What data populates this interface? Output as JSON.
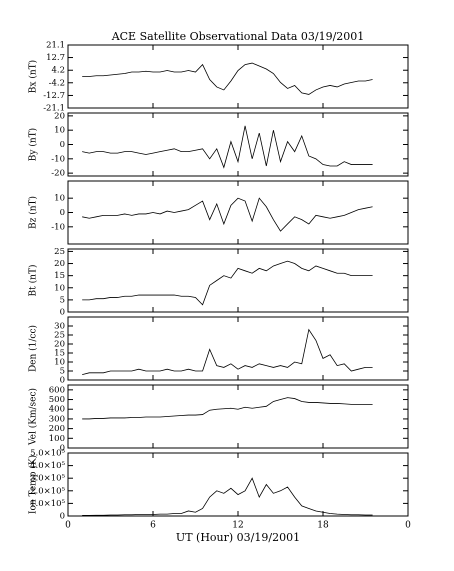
{
  "chart_data": [
    {
      "type": "line",
      "title": "ACE Satellite Observational Data   03/19/2001",
      "ylabel": "Bx (nT)",
      "color": "#000000",
      "x": [
        1,
        1.5,
        2,
        2.5,
        3,
        3.5,
        4,
        4.5,
        5,
        5.5,
        6,
        6.5,
        7,
        7.5,
        8,
        8.5,
        9,
        9.5,
        10,
        10.5,
        11,
        11.5,
        12,
        12.5,
        13,
        13.5,
        14,
        14.5,
        15,
        15.5,
        16,
        16.5,
        17,
        17.5,
        18,
        18.5,
        19,
        19.5,
        20,
        20.5,
        21,
        21.5
      ],
      "values": [
        0,
        0,
        0.5,
        0.5,
        1,
        1.5,
        2,
        3,
        3,
        3.5,
        3,
        3,
        4,
        3,
        3,
        4,
        3,
        8,
        -2,
        -7,
        -9,
        -3,
        4,
        8,
        9,
        7,
        5,
        2,
        -4,
        -8,
        -6,
        -11,
        -12,
        -9,
        -7,
        -6,
        -7,
        -5,
        -4,
        -3,
        -3,
        -2
      ],
      "xlim": [
        0,
        24
      ],
      "ylim": [
        -21.1,
        21.1
      ],
      "yticks": [
        21.1,
        12.7,
        4.2,
        -4.2,
        -12.7,
        -21.1
      ]
    },
    {
      "type": "line",
      "ylabel": "By (nT)",
      "color": "#000000",
      "x": [
        1,
        1.5,
        2,
        2.5,
        3,
        3.5,
        4,
        4.5,
        5,
        5.5,
        6,
        6.5,
        7,
        7.5,
        8,
        8.5,
        9,
        9.5,
        10,
        10.5,
        11,
        11.5,
        12,
        12.5,
        13,
        13.5,
        14,
        14.5,
        15,
        15.5,
        16,
        16.5,
        17,
        17.5,
        18,
        18.5,
        19,
        19.5,
        20,
        20.5,
        21,
        21.5
      ],
      "values": [
        -5,
        -6,
        -5,
        -5,
        -6,
        -6,
        -5,
        -5,
        -6,
        -7,
        -6,
        -5,
        -4,
        -3,
        -5,
        -5,
        -4,
        -3,
        -10,
        -3,
        -16,
        2,
        -12,
        13,
        -10,
        8,
        -15,
        10,
        -12,
        2,
        -5,
        6,
        -8,
        -10,
        -14,
        -15,
        -15,
        -12,
        -14,
        -14,
        -14,
        -14
      ],
      "xlim": [
        0,
        24
      ],
      "ylim": [
        -22,
        22
      ],
      "yticks": [
        20,
        10,
        0,
        -10,
        -20
      ]
    },
    {
      "type": "line",
      "ylabel": "Bz (nT)",
      "color": "#000000",
      "x": [
        1,
        1.5,
        2,
        2.5,
        3,
        3.5,
        4,
        4.5,
        5,
        5.5,
        6,
        6.5,
        7,
        7.5,
        8,
        8.5,
        9,
        9.5,
        10,
        10.5,
        11,
        11.5,
        12,
        12.5,
        13,
        13.5,
        14,
        14.5,
        15,
        15.5,
        16,
        16.5,
        17,
        17.5,
        18,
        18.5,
        19,
        19.5,
        20,
        20.5,
        21,
        21.5
      ],
      "values": [
        -3,
        -4,
        -3,
        -2,
        -2,
        -2,
        -1,
        -2,
        -1,
        -1,
        0,
        -1,
        1,
        0,
        1,
        2,
        5,
        8,
        -5,
        6,
        -8,
        5,
        10,
        8,
        -6,
        10,
        4,
        -5,
        -13,
        -8,
        -3,
        -5,
        -8,
        -2,
        -3,
        -4,
        -3,
        -2,
        0,
        2,
        3,
        4
      ],
      "xlim": [
        0,
        24
      ],
      "ylim": [
        -22,
        22
      ],
      "yticks": [
        10,
        0,
        -10
      ]
    },
    {
      "type": "line",
      "ylabel": "Bt (nT)",
      "color": "#000000",
      "x": [
        1,
        1.5,
        2,
        2.5,
        3,
        3.5,
        4,
        4.5,
        5,
        5.5,
        6,
        6.5,
        7,
        7.5,
        8,
        8.5,
        9,
        9.5,
        10,
        10.5,
        11,
        11.5,
        12,
        12.5,
        13,
        13.5,
        14,
        14.5,
        15,
        15.5,
        16,
        16.5,
        17,
        17.5,
        18,
        18.5,
        19,
        19.5,
        20,
        20.5,
        21,
        21.5
      ],
      "values": [
        5,
        5,
        5.5,
        5.5,
        6,
        6,
        6.5,
        6.5,
        7,
        7,
        7,
        7,
        7,
        7,
        6.5,
        6.5,
        6,
        3,
        11,
        13,
        15,
        14,
        18,
        17,
        16,
        18,
        17,
        19,
        20,
        21,
        20,
        18,
        17,
        19,
        18,
        17,
        16,
        16,
        15,
        15,
        15,
        15
      ],
      "xlim": [
        0,
        24
      ],
      "ylim": [
        0,
        26
      ],
      "yticks": [
        0,
        5,
        10,
        15,
        20,
        25
      ]
    },
    {
      "type": "line",
      "ylabel": "Den (1/cc)",
      "color": "#000000",
      "x": [
        1,
        1.5,
        2,
        2.5,
        3,
        3.5,
        4,
        4.5,
        5,
        5.5,
        6,
        6.5,
        7,
        7.5,
        8,
        8.5,
        9,
        9.5,
        10,
        10.5,
        11,
        11.5,
        12,
        12.5,
        13,
        13.5,
        14,
        14.5,
        15,
        15.5,
        16,
        16.5,
        17,
        17.5,
        18,
        18.5,
        19,
        19.5,
        20,
        20.5,
        21,
        21.5
      ],
      "values": [
        3,
        4,
        4,
        4,
        5,
        5,
        5,
        5,
        6,
        5,
        5,
        5,
        6,
        5,
        5,
        6,
        5,
        5,
        17,
        8,
        7,
        9,
        6,
        8,
        7,
        9,
        8,
        7,
        8,
        7,
        10,
        9,
        28,
        22,
        12,
        14,
        8,
        9,
        5,
        6,
        7,
        7
      ],
      "xlim": [
        0,
        24
      ],
      "ylim": [
        0,
        35
      ],
      "yticks": [
        0,
        5,
        10,
        15,
        20,
        25,
        30
      ]
    },
    {
      "type": "line",
      "ylabel": "Vel (Km/sec)",
      "color": "#000000",
      "x": [
        1,
        1.5,
        2,
        2.5,
        3,
        3.5,
        4,
        4.5,
        5,
        5.5,
        6,
        6.5,
        7,
        7.5,
        8,
        8.5,
        9,
        9.5,
        10,
        10.5,
        11,
        11.5,
        12,
        12.5,
        13,
        13.5,
        14,
        14.5,
        15,
        15.5,
        16,
        16.5,
        17,
        17.5,
        18,
        18.5,
        19,
        19.5,
        20,
        20.5,
        21,
        21.5
      ],
      "values": [
        300,
        300,
        305,
        305,
        310,
        310,
        310,
        315,
        315,
        320,
        320,
        320,
        325,
        330,
        335,
        340,
        340,
        345,
        390,
        400,
        405,
        410,
        400,
        420,
        410,
        420,
        430,
        480,
        500,
        520,
        510,
        480,
        470,
        470,
        465,
        460,
        460,
        455,
        450,
        450,
        450,
        450
      ],
      "xlim": [
        0,
        24
      ],
      "ylim": [
        0,
        650
      ],
      "yticks": [
        0,
        100,
        200,
        300,
        400,
        500,
        600
      ]
    },
    {
      "type": "line",
      "ylabel": "Ion Temp (K)",
      "xlabel": "UT (Hour)   03/19/2001",
      "color": "#000000",
      "x": [
        1,
        1.5,
        2,
        2.5,
        3,
        3.5,
        4,
        4.5,
        5,
        5.5,
        6,
        6.5,
        7,
        7.5,
        8,
        8.5,
        9,
        9.5,
        10,
        10.5,
        11,
        11.5,
        12,
        12.5,
        13,
        13.5,
        14,
        14.5,
        15,
        15.5,
        16,
        16.5,
        17,
        17.5,
        18,
        18.5,
        19,
        19.5,
        20,
        20.5,
        21,
        21.5
      ],
      "values": [
        5000,
        5000,
        6000,
        6000,
        8000,
        8000,
        10000,
        10000,
        12000,
        12000,
        12000,
        15000,
        15000,
        20000,
        20000,
        40000,
        30000,
        60000,
        150000,
        200000,
        180000,
        220000,
        170000,
        200000,
        300000,
        150000,
        250000,
        180000,
        200000,
        230000,
        150000,
        80000,
        60000,
        40000,
        30000,
        20000,
        15000,
        12000,
        10000,
        10000,
        8000,
        8000
      ],
      "xlim": [
        0,
        24
      ],
      "xticks": [
        0,
        6,
        12,
        18,
        {
          "value": 24,
          "label": "0"
        }
      ],
      "ylim": [
        0,
        500000
      ],
      "yticks": [
        0,
        {
          "value": 100000,
          "label": "1.0×10⁵"
        },
        {
          "value": 200000,
          "label": "2.0×10⁵"
        },
        {
          "value": 300000,
          "label": "3.0×10⁵"
        },
        {
          "value": 400000,
          "label": "4.0×10⁵"
        },
        {
          "value": 500000,
          "label": "5.0×10⁵"
        }
      ]
    }
  ]
}
